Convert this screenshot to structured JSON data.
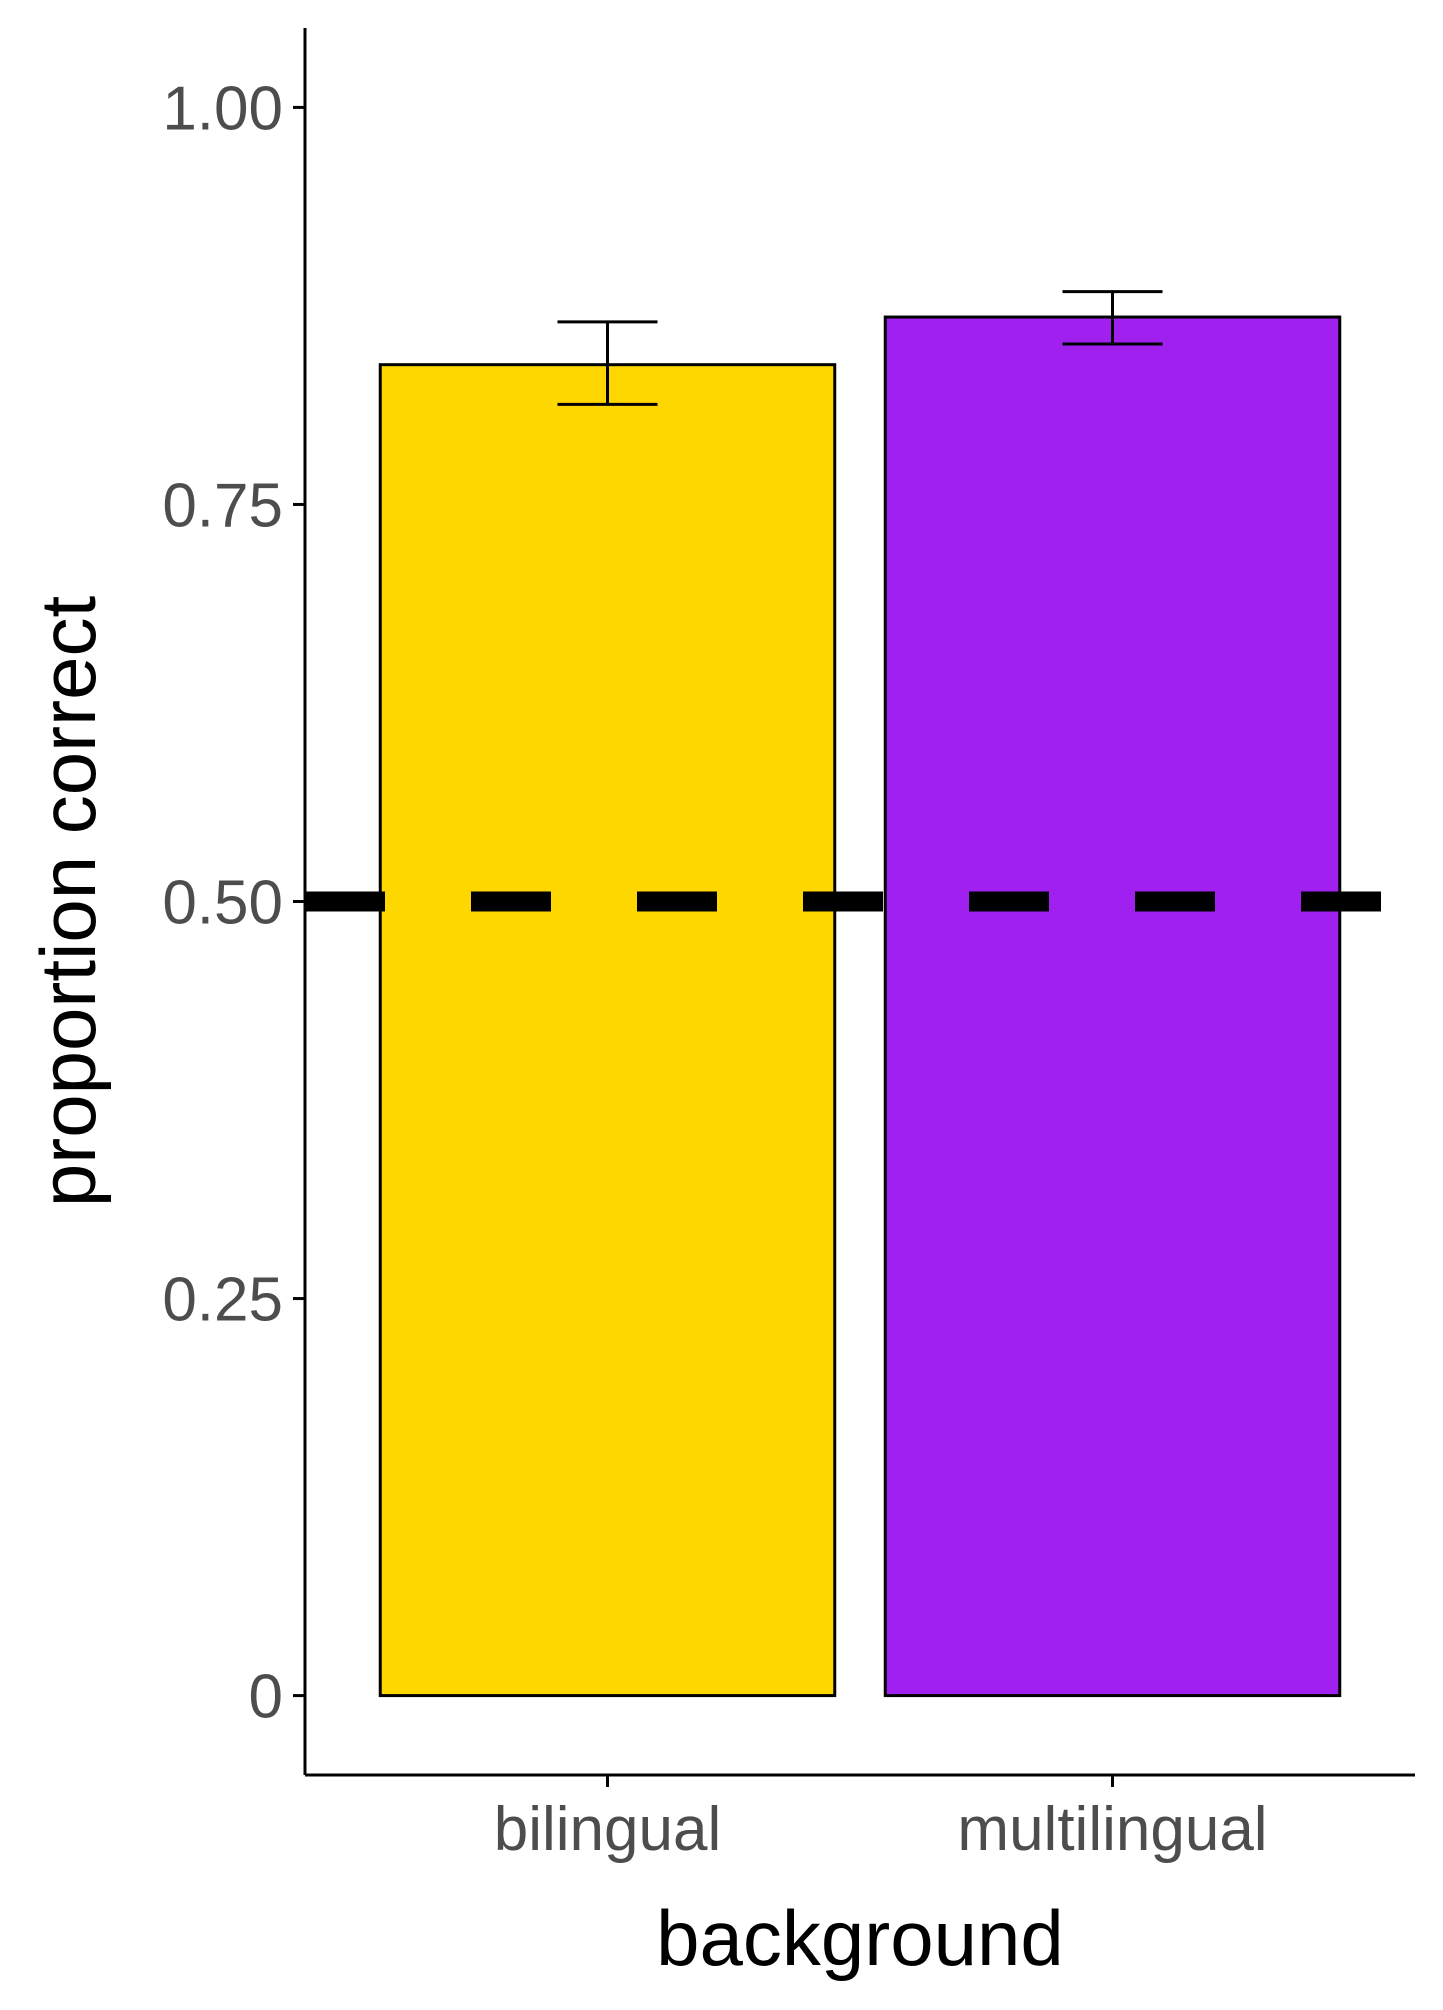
{
  "chart_data": {
    "type": "bar",
    "categories": [
      "bilingual",
      "multilingual"
    ],
    "values": [
      0.838,
      0.868
    ],
    "error_bars": [
      {
        "low": 0.813,
        "high": 0.865
      },
      {
        "low": 0.851,
        "high": 0.884
      }
    ],
    "bar_colors": [
      "#FFD700",
      "#A020F0"
    ],
    "xlabel": "background",
    "ylabel": "proportion correct",
    "ylim": [
      -0.05,
      1.05
    ],
    "yticks": [
      0,
      0.25,
      0.5,
      0.75,
      1.0
    ],
    "ytick_labels": [
      "0",
      "0.25",
      "0.50",
      "0.75",
      "1.00"
    ],
    "reference_line": {
      "y": 0.5,
      "style": "dashed",
      "color": "#000000"
    },
    "grid": false,
    "legend": "none"
  }
}
